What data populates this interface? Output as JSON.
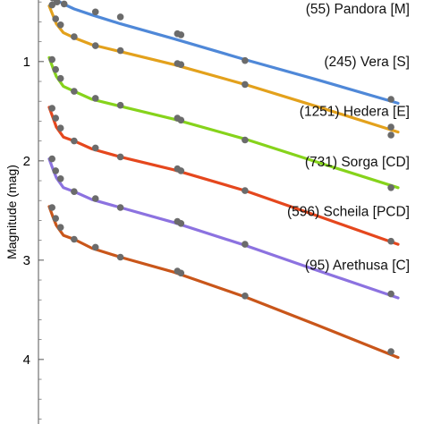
{
  "chart_data": {
    "type": "scatter",
    "title": "",
    "xlabel": "",
    "ylabel": "Magnitude (mag)",
    "x_axis_visible": false,
    "xlim": [
      0,
      100
    ],
    "ylim": [
      4.65,
      0.38
    ],
    "y_inverted": true,
    "yticks": [
      1,
      2,
      3,
      4
    ],
    "grid": false,
    "legend": "none",
    "series": [
      {
        "name": "(55) Pandora [M]",
        "color": "#4f88d8",
        "curve": [
          [
            -3,
            0.1
          ],
          [
            0,
            0.25
          ],
          [
            1,
            0.34
          ],
          [
            2,
            0.38
          ],
          [
            4,
            0.42
          ],
          [
            7,
            0.47
          ],
          [
            12,
            0.53
          ],
          [
            20,
            0.62
          ],
          [
            35,
            0.77
          ],
          [
            55,
            0.98
          ],
          [
            75,
            1.18
          ],
          [
            98,
            1.42
          ]
        ],
        "points": [
          [
            1,
            0.36
          ],
          [
            2.2,
            0.4
          ],
          [
            4.2,
            0.42
          ],
          [
            13,
            0.5
          ],
          [
            20,
            0.55
          ],
          [
            36,
            0.72
          ],
          [
            37,
            0.73
          ],
          [
            55,
            0.99
          ],
          [
            96,
            1.38
          ]
        ]
      },
      {
        "name": "(245) Vera [S]",
        "color": "#e3a11c",
        "curve": [
          [
            0,
            0.44
          ],
          [
            1,
            0.53
          ],
          [
            2,
            0.62
          ],
          [
            4,
            0.71
          ],
          [
            7,
            0.76
          ],
          [
            12,
            0.83
          ],
          [
            20,
            0.9
          ],
          [
            35,
            1.03
          ],
          [
            55,
            1.23
          ],
          [
            75,
            1.45
          ],
          [
            98,
            1.71
          ]
        ],
        "points": [
          [
            0.8,
            0.43
          ],
          [
            1.8,
            0.57
          ],
          [
            3.2,
            0.63
          ],
          [
            7,
            0.75
          ],
          [
            13,
            0.84
          ],
          [
            20,
            0.89
          ],
          [
            36,
            1.02
          ],
          [
            37,
            1.03
          ],
          [
            55,
            1.23
          ],
          [
            96,
            1.66
          ],
          [
            96,
            1.74
          ]
        ]
      },
      {
        "name": "(1251) Hedera [E]",
        "color": "#86d31b",
        "curve": [
          [
            0,
            0.96
          ],
          [
            1,
            1.06
          ],
          [
            2,
            1.15
          ],
          [
            4,
            1.25
          ],
          [
            7,
            1.3
          ],
          [
            12,
            1.38
          ],
          [
            20,
            1.45
          ],
          [
            35,
            1.58
          ],
          [
            55,
            1.78
          ],
          [
            75,
            2.01
          ],
          [
            98,
            2.27
          ]
        ],
        "points": [
          [
            0.8,
            0.98
          ],
          [
            1.8,
            1.08
          ],
          [
            3.2,
            1.17
          ],
          [
            7,
            1.3
          ],
          [
            13,
            1.37
          ],
          [
            20,
            1.44
          ],
          [
            36,
            1.57
          ],
          [
            37,
            1.59
          ],
          [
            55,
            1.79
          ],
          [
            96,
            2.27
          ]
        ]
      },
      {
        "name": "(731) Sorga [CD]",
        "color": "#e5471d",
        "curve": [
          [
            0,
            1.46
          ],
          [
            1,
            1.56
          ],
          [
            2,
            1.66
          ],
          [
            4,
            1.76
          ],
          [
            7,
            1.8
          ],
          [
            12,
            1.88
          ],
          [
            20,
            1.96
          ],
          [
            35,
            2.09
          ],
          [
            55,
            2.3
          ],
          [
            75,
            2.55
          ],
          [
            98,
            2.84
          ]
        ],
        "points": [
          [
            0.8,
            1.47
          ],
          [
            1.8,
            1.57
          ],
          [
            3.2,
            1.67
          ],
          [
            7,
            1.8
          ],
          [
            13,
            1.87
          ],
          [
            20,
            1.96
          ],
          [
            36,
            2.08
          ],
          [
            37,
            2.1
          ],
          [
            55,
            2.3
          ],
          [
            96,
            2.81
          ]
        ]
      },
      {
        "name": "(596) Scheila [PCD]",
        "color": "#8c72e0",
        "curve": [
          [
            0,
            1.98
          ],
          [
            1,
            2.08
          ],
          [
            2,
            2.17
          ],
          [
            4,
            2.27
          ],
          [
            7,
            2.31
          ],
          [
            12,
            2.39
          ],
          [
            20,
            2.47
          ],
          [
            35,
            2.62
          ],
          [
            55,
            2.85
          ],
          [
            75,
            3.1
          ],
          [
            98,
            3.38
          ]
        ],
        "points": [
          [
            0.8,
            1.98
          ],
          [
            1.8,
            2.1
          ],
          [
            3.2,
            2.18
          ],
          [
            7,
            2.31
          ],
          [
            13,
            2.38
          ],
          [
            20,
            2.47
          ],
          [
            36,
            2.61
          ],
          [
            37,
            2.63
          ],
          [
            55,
            2.84
          ],
          [
            96,
            3.34
          ]
        ]
      },
      {
        "name": "(95) Arethusa [C]",
        "color": "#c9561a",
        "curve": [
          [
            0,
            2.46
          ],
          [
            1,
            2.56
          ],
          [
            2,
            2.65
          ],
          [
            4,
            2.75
          ],
          [
            7,
            2.79
          ],
          [
            12,
            2.88
          ],
          [
            20,
            2.97
          ],
          [
            35,
            3.12
          ],
          [
            55,
            3.37
          ],
          [
            75,
            3.65
          ],
          [
            98,
            3.98
          ]
        ],
        "points": [
          [
            0.8,
            2.47
          ],
          [
            1.8,
            2.58
          ],
          [
            3.2,
            2.67
          ],
          [
            7,
            2.79
          ],
          [
            13,
            2.87
          ],
          [
            20,
            2.97
          ],
          [
            36,
            3.11
          ],
          [
            37,
            3.13
          ],
          [
            55,
            3.36
          ],
          [
            96,
            3.92
          ]
        ]
      }
    ]
  }
}
